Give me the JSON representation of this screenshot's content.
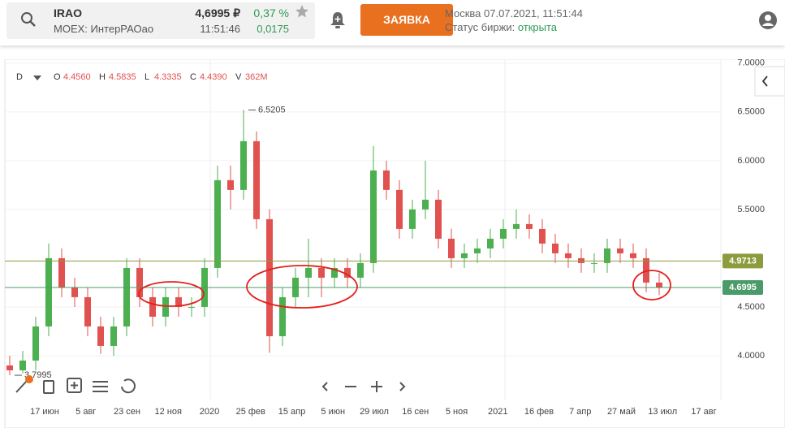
{
  "header": {
    "ticker": "IRAO",
    "exchange": "MOEX: ИнтерРАОао",
    "price": "4,6995 ₽",
    "time": "11:51:46",
    "change_pct": "0,37 %",
    "change": "0,0175",
    "order_button": "ЗАЯВКА",
    "moscow_time": "Москва 07.07.2021, 11:51:44",
    "status_label": "Статус биржи:",
    "status": "открыта"
  },
  "chart_data": {
    "type": "candlestick",
    "interval": "D",
    "ohlc_legend": [
      {
        "label": "O",
        "value": "4.4560"
      },
      {
        "label": "H",
        "value": "4.5835"
      },
      {
        "label": "L",
        "value": "4.3335"
      },
      {
        "label": "C",
        "value": "4.4390"
      },
      {
        "label": "V",
        "value": "362M"
      }
    ],
    "categories": [
      "17 июн",
      "5 авг",
      "23 сен",
      "12 ноя",
      "2020",
      "25 фев",
      "15 апр",
      "5 июн",
      "29 июл",
      "16 сен",
      "5 ноя",
      "2021",
      "16 фев",
      "7 апр",
      "27 май",
      "13 июл",
      "17 авг"
    ],
    "open": [
      3.9,
      3.85,
      3.95,
      4.3,
      5.0,
      4.7,
      4.6,
      4.3,
      4.1,
      4.3,
      4.9,
      4.6,
      4.4,
      4.6,
      4.5,
      4.5,
      4.9,
      5.8,
      5.7,
      6.2,
      5.4,
      4.2,
      4.6,
      4.8,
      4.9,
      4.8,
      4.9,
      4.8,
      4.95,
      5.9,
      5.7,
      5.3,
      5.5,
      5.6,
      5.2,
      5.0,
      5.05,
      5.1,
      5.2,
      5.3,
      5.35,
      5.3,
      5.15,
      5.05,
      5.0,
      4.95,
      4.95,
      5.1,
      5.05,
      5.0,
      4.75
    ],
    "high": [
      4.0,
      4.05,
      4.4,
      5.15,
      5.1,
      4.8,
      4.7,
      4.4,
      4.4,
      5.0,
      5.0,
      4.7,
      4.7,
      4.7,
      4.6,
      5.0,
      5.95,
      5.95,
      6.5205,
      6.3,
      5.5,
      4.7,
      4.9,
      5.2,
      5.0,
      5.0,
      5.0,
      5.05,
      6.15,
      6.0,
      5.8,
      5.6,
      6.0,
      5.7,
      5.3,
      5.15,
      5.2,
      5.3,
      5.4,
      5.5,
      5.45,
      5.4,
      5.25,
      5.15,
      5.1,
      5.05,
      5.2,
      5.2,
      5.15,
      5.1,
      4.85
    ],
    "low": [
      3.7995,
      3.82,
      3.85,
      4.2,
      4.6,
      4.5,
      4.2,
      4.02,
      4.0,
      4.2,
      4.5,
      4.3,
      4.3,
      4.4,
      4.4,
      4.4,
      4.8,
      5.5,
      5.6,
      5.3,
      4.03,
      4.1,
      4.5,
      4.6,
      4.6,
      4.7,
      4.7,
      4.7,
      4.85,
      5.6,
      5.2,
      5.2,
      5.4,
      5.1,
      4.9,
      4.9,
      4.95,
      5.0,
      5.1,
      5.2,
      5.2,
      5.05,
      4.95,
      4.9,
      4.85,
      4.85,
      4.85,
      4.95,
      4.9,
      4.65,
      4.62
    ],
    "close": [
      3.85,
      3.95,
      4.3,
      5.0,
      4.7,
      4.6,
      4.3,
      4.1,
      4.3,
      4.9,
      4.6,
      4.4,
      4.6,
      4.5,
      4.5,
      4.9,
      5.8,
      5.7,
      6.2,
      5.4,
      4.2,
      4.6,
      4.8,
      4.9,
      4.8,
      4.9,
      4.8,
      4.95,
      5.9,
      5.7,
      5.3,
      5.5,
      5.6,
      5.2,
      5.0,
      5.05,
      5.1,
      5.2,
      5.3,
      5.35,
      5.3,
      5.15,
      5.05,
      5.0,
      4.95,
      4.95,
      5.1,
      5.05,
      5.0,
      4.75,
      4.7
    ],
    "up_color": "#4caf50",
    "down_color": "#e0524f",
    "ylim": [
      3.55,
      7.04
    ],
    "yticks": [
      {
        "value": 4,
        "label": "4.0000"
      },
      {
        "value": 4.5,
        "label": "4.5000"
      },
      {
        "value": 5.5,
        "label": "5.5000"
      },
      {
        "value": 6,
        "label": "6.0000"
      },
      {
        "value": 6.5,
        "label": "6.5000"
      },
      {
        "value": 7,
        "label": "7.0000"
      }
    ],
    "grid": true,
    "price_lines": [
      {
        "value": 4.9713,
        "label": "4.9713",
        "color": "#8c9c3c"
      },
      {
        "value": 4.6995,
        "label": "4.6995",
        "color": "#4b9b6a"
      }
    ],
    "annotations": [
      {
        "value": 6.5205,
        "label": "6.5205"
      },
      {
        "value": 3.7995,
        "label": "3.7995"
      }
    ]
  }
}
